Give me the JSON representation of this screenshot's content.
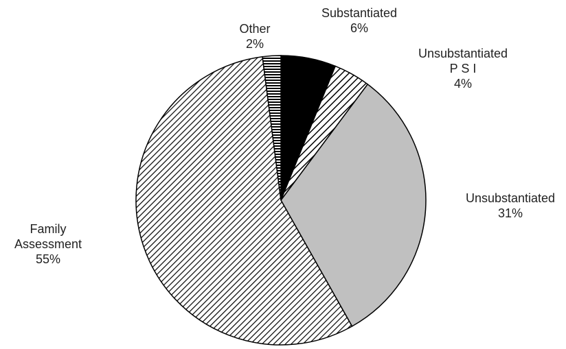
{
  "chart_data": {
    "type": "pie",
    "title": "",
    "start_angle_deg": 0,
    "direction": "clockwise",
    "slices": [
      {
        "label": "Substantiated",
        "label_lines": [
          "Substantiated"
        ],
        "value": 6,
        "percent_label": "6%",
        "fill": "solid-black",
        "color": "#000000"
      },
      {
        "label": "Unsubstantiated PSI",
        "label_lines": [
          "Unsubstantiated",
          "P S I"
        ],
        "value": 4,
        "percent_label": "4%",
        "fill": "diagonal-hatch",
        "color": "#ffffff"
      },
      {
        "label": "Unsubstantiated",
        "label_lines": [
          "Unsubstantiated"
        ],
        "value": 31,
        "percent_label": "31%",
        "fill": "solid-gray",
        "color": "#c0c0c0"
      },
      {
        "label": "Family Assessment",
        "label_lines": [
          "Family",
          "Assessment"
        ],
        "value": 55,
        "percent_label": "55%",
        "fill": "diagonal-hatch-dense",
        "color": "#ffffff"
      },
      {
        "label": "Other",
        "label_lines": [
          "Other"
        ],
        "value": 2,
        "percent_label": "2%",
        "fill": "horizontal-stripes",
        "color": "#ffffff"
      }
    ],
    "stroke_color": "#000000"
  }
}
